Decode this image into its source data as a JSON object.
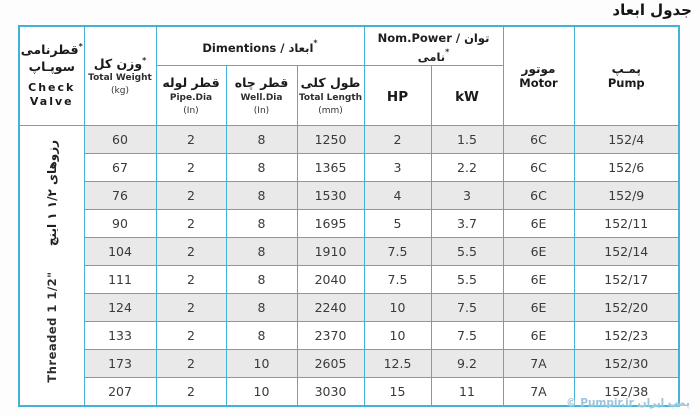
{
  "title": "جدول ابعاد",
  "misc": {
    "asterisk": "*"
  },
  "watermark": "© Pumpir.ir پمپ ایران",
  "table": {
    "groups": {
      "dimensions": "Dimentions / ابعاد",
      "power": "Nom.Power / توان نامی"
    },
    "columns": {
      "check_valve": {
        "fa1": "قطرنامی",
        "fa2": "سوپـاپ",
        "en1": "Check",
        "en2": "Valve"
      },
      "weight": {
        "fa": "وزن کل",
        "en": "Total Weight",
        "unit": "(kg)"
      },
      "pipe": {
        "fa": "قطر لوله",
        "en": "Pipe.Dia",
        "unit": "(In)"
      },
      "well": {
        "fa": "قطر چاه",
        "en": "Well.Dia",
        "unit": "(In)"
      },
      "length": {
        "fa": "طول کلی",
        "en": "Total Length",
        "unit": "(mm)"
      },
      "hp": "HP",
      "kw": "kW",
      "motor": {
        "fa": "موتور",
        "en": "Motor"
      },
      "pump": {
        "fa": "پمـپ",
        "en": "Pump"
      }
    },
    "col_keys": [
      "weight",
      "pipe",
      "well",
      "length",
      "hp",
      "kw",
      "motor",
      "pump"
    ],
    "side_label": {
      "fa": "رزوهای ۱/۲ ۱ اینچ",
      "en": "Threaded 1 1/2\""
    },
    "rows": [
      [
        "60",
        "2",
        "8",
        "1250",
        "2",
        "1.5",
        "6C",
        "152/4"
      ],
      [
        "67",
        "2",
        "8",
        "1365",
        "3",
        "2.2",
        "6C",
        "152/6"
      ],
      [
        "76",
        "2",
        "8",
        "1530",
        "4",
        "3",
        "6C",
        "152/9"
      ],
      [
        "90",
        "2",
        "8",
        "1695",
        "5",
        "3.7",
        "6E",
        "152/11"
      ],
      [
        "104",
        "2",
        "8",
        "1910",
        "7.5",
        "5.5",
        "6E",
        "152/14"
      ],
      [
        "111",
        "2",
        "8",
        "2040",
        "7.5",
        "5.5",
        "6E",
        "152/17"
      ],
      [
        "124",
        "2",
        "8",
        "2240",
        "10",
        "7.5",
        "6E",
        "152/20"
      ],
      [
        "133",
        "2",
        "8",
        "2370",
        "10",
        "7.5",
        "6E",
        "152/23"
      ],
      [
        "173",
        "2",
        "10",
        "2605",
        "12.5",
        "9.2",
        "7A",
        "152/30"
      ],
      [
        "207",
        "2",
        "10",
        "3030",
        "15",
        "11",
        "7A",
        "152/38"
      ]
    ]
  }
}
